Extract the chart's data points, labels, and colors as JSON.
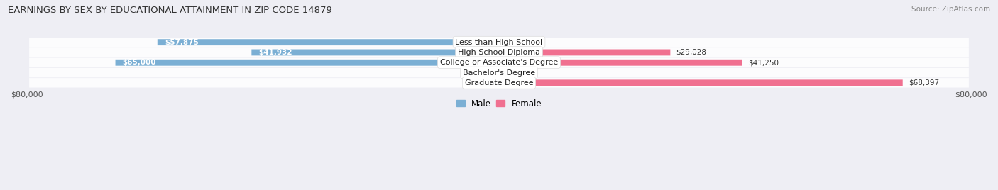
{
  "title": "EARNINGS BY SEX BY EDUCATIONAL ATTAINMENT IN ZIP CODE 14879",
  "source": "Source: ZipAtlas.com",
  "categories": [
    "Less than High School",
    "High School Diploma",
    "College or Associate's Degree",
    "Bachelor's Degree",
    "Graduate Degree"
  ],
  "male_values": [
    57875,
    41932,
    65000,
    0,
    0
  ],
  "female_values": [
    0,
    29028,
    41250,
    0,
    68397
  ],
  "male_color": "#7bafd4",
  "male_color_light": "#b8d0e8",
  "female_color": "#f07090",
  "female_color_light": "#f8b0c0",
  "axis_max": 80000,
  "bg_color": "#eeeef4",
  "row_bg_color": "#ffffff",
  "legend_male_color": "#7bafd4",
  "legend_female_color": "#f07090",
  "zero_stub": 4000
}
